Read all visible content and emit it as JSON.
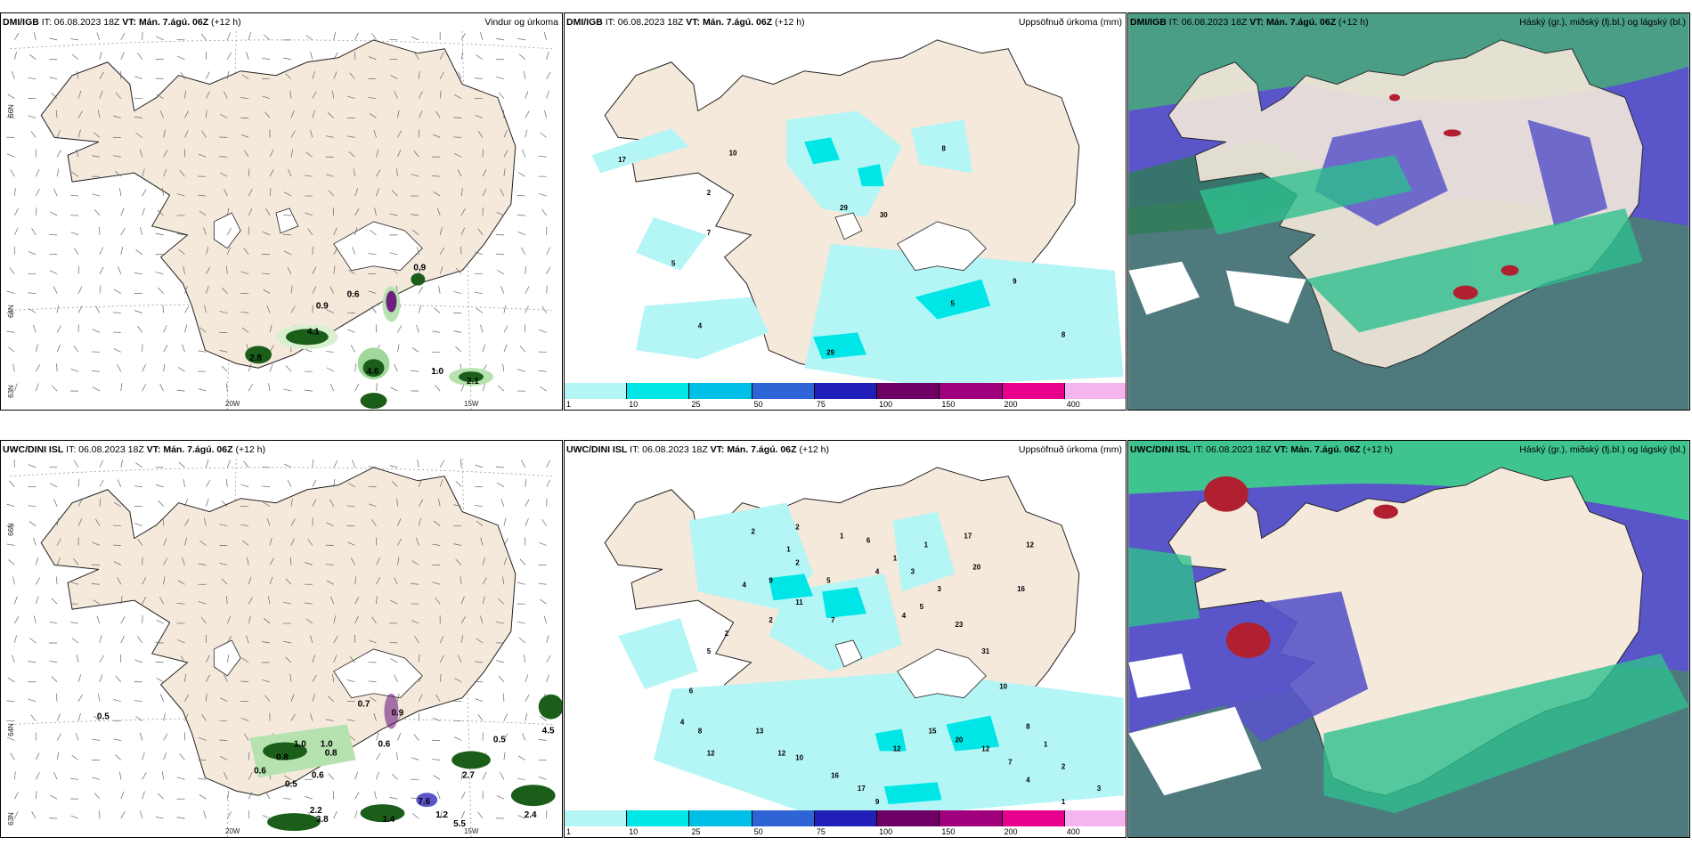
{
  "panels": [
    {
      "model": "DMI/IGB",
      "it": "IT: 06.08.2023 18Z",
      "vt_label": "VT:",
      "vt": "Mán. 7.ágú. 06Z",
      "lead": "(+12 h)",
      "title": "Vindur og úrkoma"
    },
    {
      "model": "DMI/IGB",
      "it": "IT: 06.08.2023 18Z",
      "vt_label": "VT:",
      "vt": "Mán. 7.ágú. 06Z",
      "lead": "(+12 h)",
      "title": "Uppsöfnuð úrkoma (mm)"
    },
    {
      "model": "DMI/IGB",
      "it": "IT: 06.08.2023 18Z",
      "vt_label": "VT:",
      "vt": "Mán. 7.ágú. 06Z",
      "lead": "(+12 h)",
      "title": "Háský (gr.), miðský (fj.bl.) og lágský (bl.)"
    },
    {
      "model": "UWC/DINI ISL",
      "it": "IT: 06.08.2023 18Z",
      "vt_label": "VT:",
      "vt": "Mán. 7.ágú. 06Z",
      "lead": "(+12 h)",
      "title": ""
    },
    {
      "model": "UWC/DINI ISL",
      "it": "IT: 06.08.2023 18Z",
      "vt_label": "VT:",
      "vt": "Mán. 7.ágú. 06Z",
      "lead": "(+12 h)",
      "title": "Uppsöfnuð úrkoma (mm)"
    },
    {
      "model": "UWC/DINI ISL",
      "it": "IT: 06.08.2023 18Z",
      "vt_label": "VT:",
      "vt": "Mán. 7.ágú. 06Z",
      "lead": "(+12 h)",
      "title": "Háský (gr.), miðský (fj.bl.) og lágský (bl.)"
    }
  ],
  "axis_labels": {
    "lat66": "66N",
    "lat64": "64N",
    "lat63": "63N",
    "lon20": "20W",
    "lon15": "15W"
  },
  "colorbar": {
    "ticks": [
      "1",
      "10",
      "25",
      "50",
      "75",
      "100",
      "150",
      "200",
      "400"
    ],
    "colors": [
      "#b4f5f5",
      "#00e6e6",
      "#00bfe6",
      "#2f64d6",
      "#2020b8",
      "#6e0066",
      "#a0007e",
      "#e6008c",
      "#f5b4f0"
    ]
  },
  "wind_labels_top": [
    "0.9",
    "0.6",
    "0.9",
    "4.1",
    "4.6",
    "1.0",
    "2.1",
    "2.8"
  ],
  "wind_labels_bottom": [
    "0.5",
    "0.7",
    "0.9",
    "1.0",
    "1.0",
    "0.8",
    "0.6",
    "0.8",
    "0.6",
    "0.5",
    "0.6",
    "2.2",
    "3.8",
    "1.4",
    "7.6",
    "1.2",
    "5.5",
    "2.7",
    "0.5",
    "4.5",
    "2.4"
  ],
  "precip_labels_top": [
    "17",
    "10",
    "2",
    "7",
    "5",
    "4",
    "29",
    "30",
    "8",
    "9",
    "8",
    "29",
    "5"
  ],
  "precip_labels_bottom": [
    "2",
    "2",
    "1",
    "6",
    "1",
    "1",
    "2",
    "5",
    "9",
    "4",
    "4",
    "3",
    "1",
    "17",
    "20",
    "16",
    "12",
    "23",
    "31",
    "10",
    "3",
    "5",
    "4",
    "7",
    "11",
    "2",
    "2",
    "5",
    "6",
    "4",
    "8",
    "12",
    "13",
    "12",
    "10",
    "16",
    "17",
    "9",
    "12",
    "15",
    "20",
    "12",
    "7",
    "4",
    "1",
    "3",
    "2",
    "1",
    "8"
  ]
}
